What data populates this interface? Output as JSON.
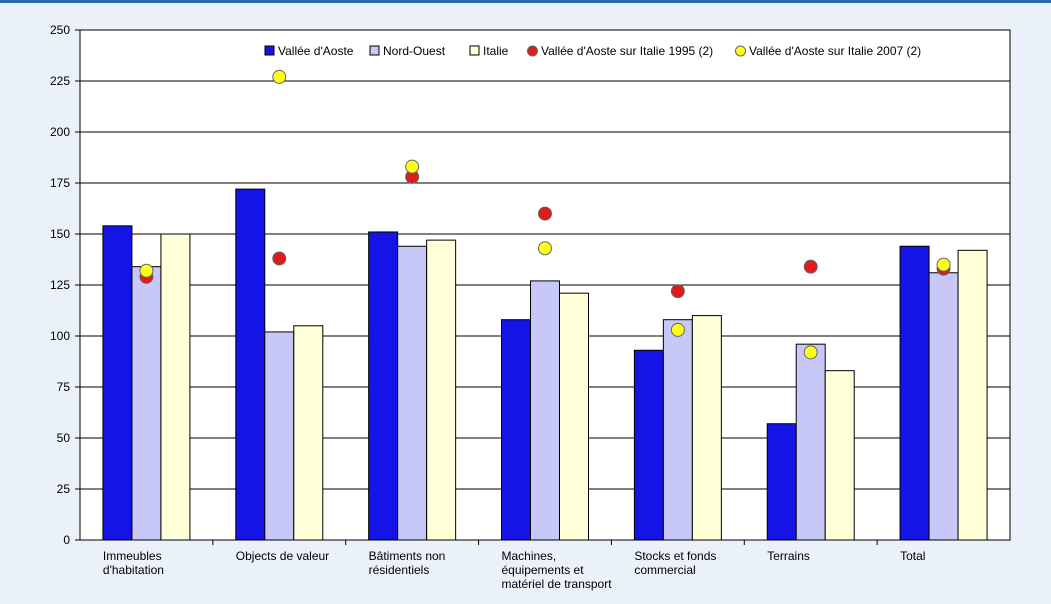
{
  "chart_data": {
    "type": "bar",
    "categories": [
      [
        "Immeubles",
        "d'habitation"
      ],
      [
        "Objects de valeur"
      ],
      [
        "Bâtiments non",
        "résidentiels"
      ],
      [
        "Machines,",
        "équipements et",
        "matériel de transport"
      ],
      [
        "Stocks et fonds",
        "commercial"
      ],
      [
        "Terrains"
      ],
      [
        "Total"
      ]
    ],
    "ylim": [
      0,
      250
    ],
    "yticks": [
      0,
      25,
      50,
      75,
      100,
      125,
      150,
      175,
      200,
      225,
      250
    ],
    "grid": true,
    "legend_position": "top",
    "series": [
      {
        "name": "Vallée d'Aoste",
        "kind": "bar",
        "color": "#1414e6",
        "values": [
          154,
          172,
          151,
          108,
          93,
          57,
          144
        ]
      },
      {
        "name": "Nord-Ouest",
        "kind": "bar",
        "color": "#c8c8f8",
        "values": [
          134,
          102,
          144,
          127,
          108,
          96,
          131
        ]
      },
      {
        "name": "Italie",
        "kind": "bar",
        "color": "#ffffd8",
        "values": [
          150,
          105,
          147,
          121,
          110,
          83,
          142
        ]
      },
      {
        "name": "Vallée d'Aoste sur Italie 1995 (2)",
        "kind": "point",
        "color": "#e01b1b",
        "values": [
          129,
          138,
          178,
          160,
          122,
          134,
          133
        ]
      },
      {
        "name": "Vallée d'Aoste sur Italie 2007 (2)",
        "kind": "point",
        "color": "#ffff1a",
        "values": [
          132,
          227,
          183,
          143,
          103,
          92,
          135
        ]
      }
    ]
  }
}
